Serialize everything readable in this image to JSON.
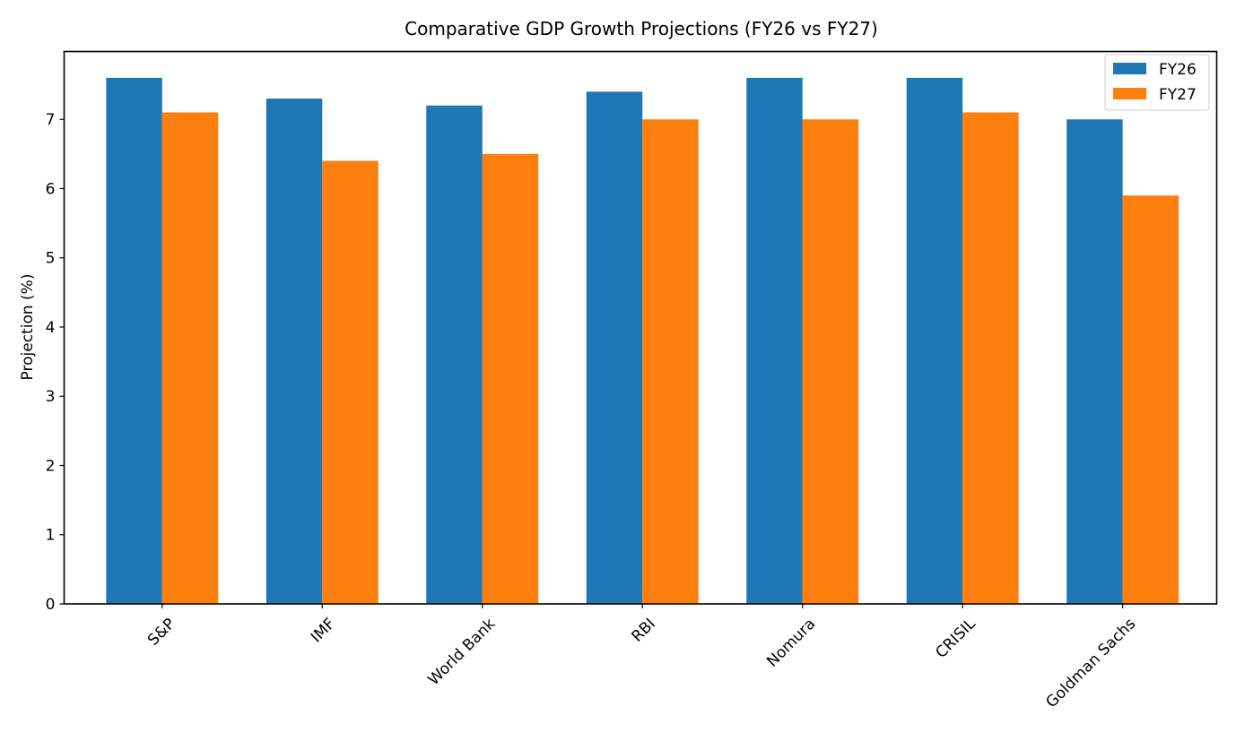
{
  "chart_data": {
    "type": "bar",
    "title": "Comparative GDP Growth Projections (FY26 vs FY27)",
    "xlabel": "",
    "ylabel": "Projection (%)",
    "categories": [
      "S&P",
      "IMF",
      "World Bank",
      "RBI",
      "Nomura",
      "CRISIL",
      "Goldman Sachs"
    ],
    "series": [
      {
        "name": "FY26",
        "color": "#1f77b4",
        "values": [
          7.6,
          7.3,
          7.2,
          7.4,
          7.6,
          7.6,
          7.0
        ]
      },
      {
        "name": "FY27",
        "color": "#ff7f0e",
        "values": [
          7.1,
          6.4,
          6.5,
          7.0,
          7.0,
          7.1,
          5.9
        ]
      }
    ],
    "ylim": [
      0,
      7.98
    ],
    "yticks": [
      0,
      1,
      2,
      3,
      4,
      5,
      6,
      7
    ],
    "grid": false,
    "legend": "top-right",
    "xtick_rotation_deg": 45
  }
}
